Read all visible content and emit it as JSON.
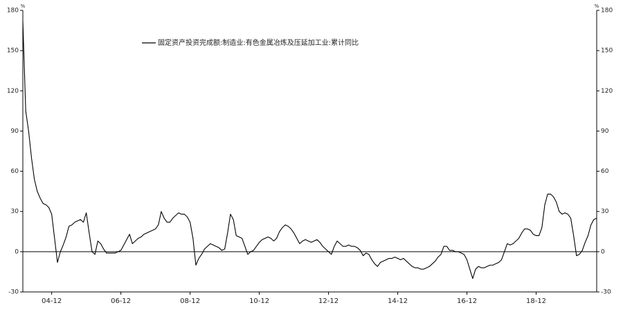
{
  "chart_data": {
    "type": "line",
    "ylabel": "%",
    "y2label": "%",
    "categories": [
      null,
      null,
      null,
      null,
      null,
      null,
      null,
      null,
      null,
      null,
      "04-12",
      null,
      null,
      null,
      null,
      null,
      null,
      null,
      null,
      null,
      null,
      null,
      null,
      null,
      null,
      null,
      null,
      null,
      null,
      null,
      null,
      null,
      null,
      null,
      "06-12",
      null,
      null,
      null,
      null,
      null,
      null,
      null,
      null,
      null,
      null,
      null,
      null,
      null,
      null,
      null,
      null,
      null,
      null,
      null,
      null,
      null,
      null,
      null,
      "08-12",
      null,
      null,
      null,
      null,
      null,
      null,
      null,
      null,
      null,
      null,
      null,
      null,
      null,
      null,
      null,
      null,
      null,
      null,
      null,
      null,
      null,
      null,
      null,
      "10-12",
      null,
      null,
      null,
      null,
      null,
      null,
      null,
      null,
      null,
      null,
      null,
      null,
      null,
      null,
      null,
      null,
      null,
      null,
      null,
      null,
      null,
      null,
      null,
      "12-12",
      null,
      null,
      null,
      null,
      null,
      null,
      null,
      null,
      null,
      null,
      null,
      null,
      null,
      null,
      null,
      null,
      null,
      null,
      null,
      null,
      null,
      null,
      null,
      "14-12",
      null,
      null,
      null,
      null,
      null,
      null,
      null,
      null,
      null,
      null,
      null,
      null,
      null,
      null,
      null,
      null,
      null,
      null,
      null,
      null,
      null,
      null,
      null,
      "16-12",
      null,
      null,
      null,
      null,
      null,
      null,
      null,
      null,
      null,
      null,
      null,
      null,
      null,
      null,
      null,
      null,
      null,
      null,
      null,
      null,
      null,
      null,
      null,
      "18-12",
      null,
      null,
      null,
      null,
      null,
      null,
      null,
      null,
      null,
      null,
      null,
      null,
      null,
      null,
      null,
      null,
      null,
      null,
      null,
      null,
      null
    ],
    "series": [
      {
        "name": "固定资产投资完成额:制造业:有色金属冶炼及压延加工业:累计同比",
        "color": "#000000",
        "values": [
          172,
          105,
          90,
          70,
          54,
          45,
          40,
          36,
          35,
          33,
          28,
          10,
          -8,
          0,
          5,
          11,
          19,
          20,
          22,
          23,
          24,
          22,
          29,
          14,
          0,
          -2,
          8,
          6,
          2,
          -1,
          -1,
          -1,
          -1,
          0,
          1,
          5,
          9,
          13,
          6,
          8,
          10,
          11,
          13,
          14,
          15,
          16,
          17,
          20,
          30,
          25,
          22,
          22,
          25,
          27,
          29,
          28,
          28,
          26,
          22,
          10,
          -10,
          -5,
          -2,
          2,
          4,
          6,
          5,
          4,
          3,
          1,
          2,
          14,
          28,
          24,
          12,
          11,
          10,
          4,
          -2,
          0,
          1,
          4,
          7,
          9,
          10,
          11,
          10,
          8,
          10,
          15,
          18,
          20,
          19,
          17,
          14,
          10,
          6,
          8,
          9,
          8,
          7,
          8,
          9,
          7,
          4,
          2,
          0,
          -2,
          4,
          8,
          6,
          4,
          4,
          5,
          4,
          4,
          3,
          1,
          -3,
          -1,
          -2,
          -6,
          -9,
          -11,
          -8,
          -7,
          -6,
          -5,
          -5,
          -4,
          -5,
          -6,
          -5,
          -7,
          -9,
          -11,
          -12,
          -12,
          -13,
          -13,
          -12,
          -11,
          -9,
          -7,
          -4,
          -2,
          4,
          4,
          1,
          1,
          0,
          0,
          -1,
          -2,
          -6,
          -13,
          -20,
          -13,
          -11,
          -12,
          -12,
          -11,
          -10,
          -10,
          -9,
          -8,
          -6,
          0,
          6,
          5,
          6,
          8,
          10,
          14,
          17,
          17,
          16,
          13,
          12,
          12,
          18,
          35,
          43,
          43,
          41,
          37,
          30,
          28,
          29,
          28,
          25,
          12,
          -3,
          -2,
          1,
          7,
          12,
          20,
          24,
          25
        ]
      }
    ],
    "ylim": [
      -30,
      180
    ],
    "yticks": [
      -30,
      0,
      30,
      60,
      90,
      120,
      150,
      180
    ],
    "y2lim": [
      -30,
      180
    ],
    "y2ticks": [
      -30,
      0,
      30,
      60,
      90,
      120,
      150,
      180
    ]
  }
}
